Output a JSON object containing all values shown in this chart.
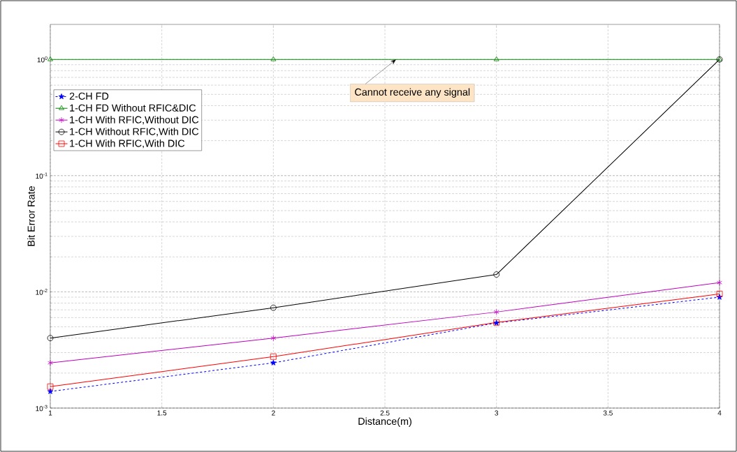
{
  "chart_data": {
    "type": "line",
    "xlabel": "Distance(m)",
    "ylabel": "Bit Error Rate",
    "x": [
      1,
      2,
      3,
      4
    ],
    "series": [
      {
        "name": "2-CH FD",
        "color": "#0000ff",
        "values": [
          0.00139,
          0.00245,
          0.0054,
          0.009
        ],
        "marker": "star",
        "line_style": "dashed"
      },
      {
        "name": "1-CH FD Without RFIC&DIC",
        "color": "#008000",
        "values": [
          1,
          1,
          1,
          1
        ],
        "marker": "triangle",
        "line_style": "solid"
      },
      {
        "name": "1-CH With RFIC,Without DIC",
        "color": "#bf00bf",
        "values": [
          0.00245,
          0.004,
          0.0067,
          0.012
        ],
        "marker": "cross",
        "line_style": "solid"
      },
      {
        "name": "1-CH Without RFIC,With DIC",
        "color": "#000000",
        "values": [
          0.004,
          0.0073,
          0.0141,
          1
        ],
        "marker": "circle",
        "line_style": "solid"
      },
      {
        "name": "1-CH With RFIC,With DIC",
        "color": "#ff0000",
        "values": [
          0.00153,
          0.00277,
          0.00545,
          0.0096
        ],
        "marker": "square",
        "line_style": "solid"
      }
    ],
    "xlim": [
      1,
      4
    ],
    "xticks": [
      1,
      1.5,
      2,
      2.5,
      3,
      3.5,
      4
    ],
    "ylim": [
      0.001,
      2
    ],
    "log": "y",
    "yticks": [
      {
        "value": 0.001,
        "label": "10$^{-3}$"
      },
      {
        "value": 0.01,
        "label": "10$^{-2}$"
      },
      {
        "value": 0.1,
        "label": "10$^{-1}$"
      },
      {
        "value": 1,
        "label": "10$^{0}$"
      }
    ],
    "grid": true,
    "legend": "top left",
    "annotations": [
      {
        "text": "Cannot receive any signal",
        "x": 2.55,
        "y": 1
      }
    ]
  }
}
